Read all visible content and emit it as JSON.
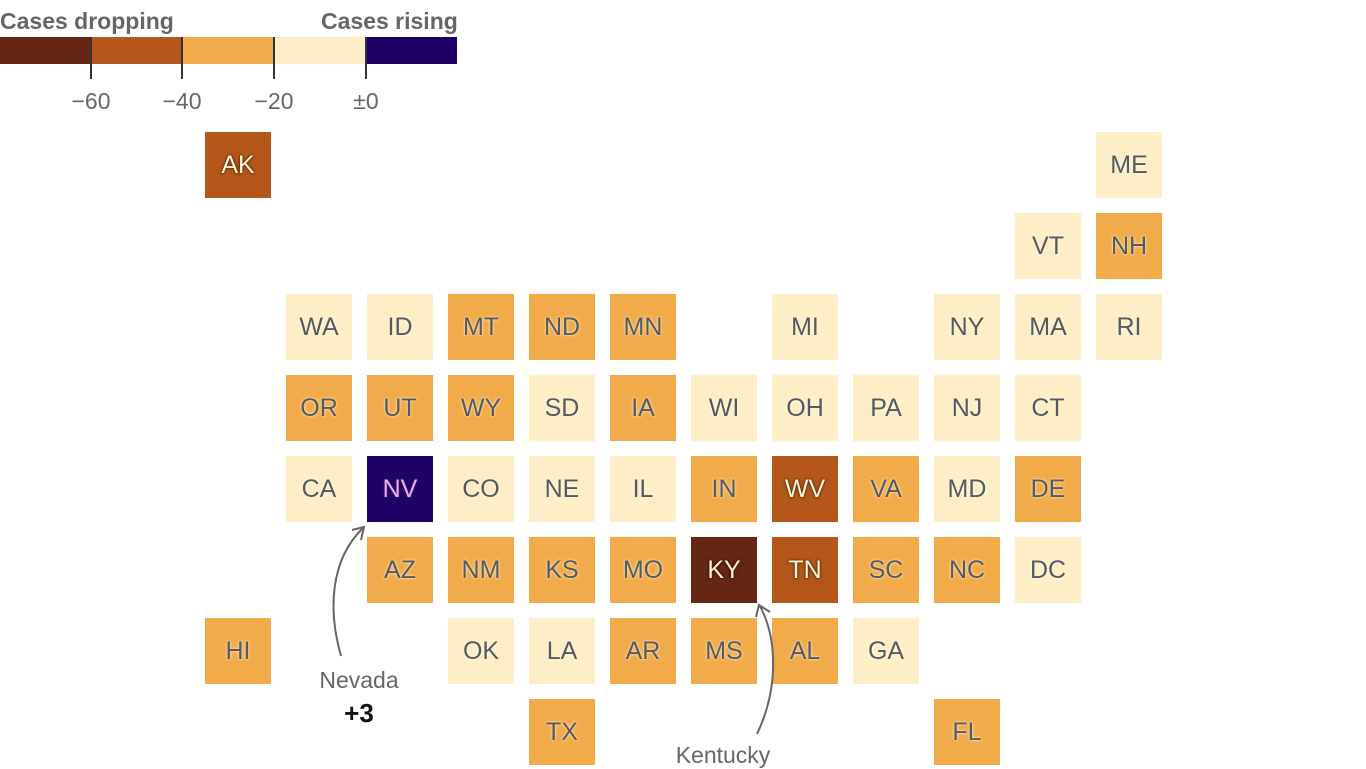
{
  "legend": {
    "left_title": "Cases dropping",
    "right_title": "Cases rising",
    "ticks": [
      "−60",
      "−40",
      "−20",
      "±0"
    ],
    "colors": {
      "bin_lt_-60": "#662614",
      "bin_-60_-40": "#b5561a",
      "bin_-40_-20": "#f1ab4a",
      "bin_-20_0": "#feeec7",
      "bin_gt_0": "#1f0066"
    }
  },
  "annotations": {
    "nevada": {
      "name": "Nevada",
      "value": "+3"
    },
    "kentucky": {
      "name": "Kentucky"
    }
  },
  "chart_data": {
    "type": "heatmap",
    "title": "",
    "legend_title_left": "Cases dropping",
    "legend_title_right": "Cases rising",
    "legend_ticks": [
      -60,
      -40,
      -20,
      0
    ],
    "bins": [
      {
        "range": "< -60",
        "color": "#662614"
      },
      {
        "range": "-60 to -40",
        "color": "#b5561a"
      },
      {
        "range": "-40 to -20",
        "color": "#f1ab4a"
      },
      {
        "range": "-20 to 0",
        "color": "#feeec7"
      },
      {
        "range": "> 0",
        "color": "#1f0066"
      }
    ],
    "tiles": [
      {
        "state": "AK",
        "row": 0,
        "col": 0,
        "bin": "-60 to -40"
      },
      {
        "state": "ME",
        "row": 0,
        "col": 11,
        "bin": "-20 to 0"
      },
      {
        "state": "VT",
        "row": 1,
        "col": 10,
        "bin": "-20 to 0"
      },
      {
        "state": "NH",
        "row": 1,
        "col": 11,
        "bin": "-40 to -20"
      },
      {
        "state": "WA",
        "row": 2,
        "col": 1,
        "bin": "-20 to 0"
      },
      {
        "state": "ID",
        "row": 2,
        "col": 2,
        "bin": "-20 to 0"
      },
      {
        "state": "MT",
        "row": 2,
        "col": 3,
        "bin": "-40 to -20"
      },
      {
        "state": "ND",
        "row": 2,
        "col": 4,
        "bin": "-40 to -20"
      },
      {
        "state": "MN",
        "row": 2,
        "col": 5,
        "bin": "-40 to -20"
      },
      {
        "state": "MI",
        "row": 2,
        "col": 7,
        "bin": "-20 to 0"
      },
      {
        "state": "NY",
        "row": 2,
        "col": 9,
        "bin": "-20 to 0"
      },
      {
        "state": "MA",
        "row": 2,
        "col": 10,
        "bin": "-20 to 0"
      },
      {
        "state": "RI",
        "row": 2,
        "col": 11,
        "bin": "-20 to 0"
      },
      {
        "state": "OR",
        "row": 3,
        "col": 1,
        "bin": "-40 to -20"
      },
      {
        "state": "UT",
        "row": 3,
        "col": 2,
        "bin": "-40 to -20"
      },
      {
        "state": "WY",
        "row": 3,
        "col": 3,
        "bin": "-40 to -20"
      },
      {
        "state": "SD",
        "row": 3,
        "col": 4,
        "bin": "-20 to 0"
      },
      {
        "state": "IA",
        "row": 3,
        "col": 5,
        "bin": "-40 to -20"
      },
      {
        "state": "WI",
        "row": 3,
        "col": 6,
        "bin": "-20 to 0"
      },
      {
        "state": "OH",
        "row": 3,
        "col": 7,
        "bin": "-20 to 0"
      },
      {
        "state": "PA",
        "row": 3,
        "col": 8,
        "bin": "-20 to 0"
      },
      {
        "state": "NJ",
        "row": 3,
        "col": 9,
        "bin": "-20 to 0"
      },
      {
        "state": "CT",
        "row": 3,
        "col": 10,
        "bin": "-20 to 0"
      },
      {
        "state": "CA",
        "row": 4,
        "col": 1,
        "bin": "-20 to 0"
      },
      {
        "state": "NV",
        "row": 4,
        "col": 2,
        "bin": "> 0",
        "value": 3
      },
      {
        "state": "CO",
        "row": 4,
        "col": 3,
        "bin": "-20 to 0"
      },
      {
        "state": "NE",
        "row": 4,
        "col": 4,
        "bin": "-20 to 0"
      },
      {
        "state": "IL",
        "row": 4,
        "col": 5,
        "bin": "-20 to 0"
      },
      {
        "state": "IN",
        "row": 4,
        "col": 6,
        "bin": "-40 to -20"
      },
      {
        "state": "WV",
        "row": 4,
        "col": 7,
        "bin": "-60 to -40"
      },
      {
        "state": "VA",
        "row": 4,
        "col": 8,
        "bin": "-40 to -20"
      },
      {
        "state": "MD",
        "row": 4,
        "col": 9,
        "bin": "-20 to 0"
      },
      {
        "state": "DE",
        "row": 4,
        "col": 10,
        "bin": "-40 to -20"
      },
      {
        "state": "AZ",
        "row": 5,
        "col": 2,
        "bin": "-40 to -20"
      },
      {
        "state": "NM",
        "row": 5,
        "col": 3,
        "bin": "-40 to -20"
      },
      {
        "state": "KS",
        "row": 5,
        "col": 4,
        "bin": "-40 to -20"
      },
      {
        "state": "MO",
        "row": 5,
        "col": 5,
        "bin": "-40 to -20"
      },
      {
        "state": "KY",
        "row": 5,
        "col": 6,
        "bin": "< -60"
      },
      {
        "state": "TN",
        "row": 5,
        "col": 7,
        "bin": "-60 to -40"
      },
      {
        "state": "SC",
        "row": 5,
        "col": 8,
        "bin": "-40 to -20"
      },
      {
        "state": "NC",
        "row": 5,
        "col": 9,
        "bin": "-40 to -20"
      },
      {
        "state": "DC",
        "row": 5,
        "col": 10,
        "bin": "-20 to 0"
      },
      {
        "state": "HI",
        "row": 6,
        "col": 0,
        "bin": "-40 to -20"
      },
      {
        "state": "OK",
        "row": 6,
        "col": 3,
        "bin": "-20 to 0"
      },
      {
        "state": "LA",
        "row": 6,
        "col": 4,
        "bin": "-20 to 0"
      },
      {
        "state": "AR",
        "row": 6,
        "col": 5,
        "bin": "-40 to -20"
      },
      {
        "state": "MS",
        "row": 6,
        "col": 6,
        "bin": "-40 to -20"
      },
      {
        "state": "AL",
        "row": 6,
        "col": 7,
        "bin": "-40 to -20"
      },
      {
        "state": "GA",
        "row": 6,
        "col": 8,
        "bin": "-20 to 0"
      },
      {
        "state": "TX",
        "row": 7,
        "col": 4,
        "bin": "-40 to -20"
      },
      {
        "state": "FL",
        "row": 7,
        "col": 9,
        "bin": "-40 to -20"
      }
    ],
    "annotations": [
      {
        "state": "NV",
        "label": "Nevada",
        "value": "+3"
      },
      {
        "state": "KY",
        "label": "Kentucky"
      }
    ]
  }
}
